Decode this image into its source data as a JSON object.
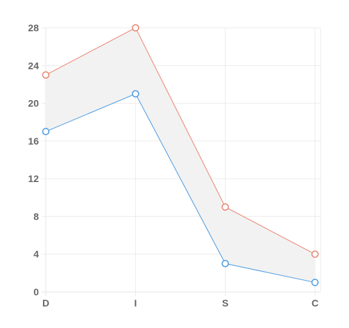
{
  "chart_data": {
    "type": "line",
    "categories": [
      "D",
      "I",
      "S",
      "C"
    ],
    "series": [
      {
        "values": [
          23,
          28,
          9,
          4
        ],
        "color": "#e8836f"
      },
      {
        "values": [
          17,
          21,
          3,
          1
        ],
        "color": "#4a9ae0"
      }
    ],
    "band_fill": "#f2f2f2",
    "ylim": [
      0,
      28
    ],
    "yticks": [
      "0",
      "4",
      "8",
      "12",
      "16",
      "20",
      "24",
      "28"
    ],
    "grid": true,
    "legend": "none",
    "title": "",
    "xlabel": "",
    "ylabel": ""
  }
}
